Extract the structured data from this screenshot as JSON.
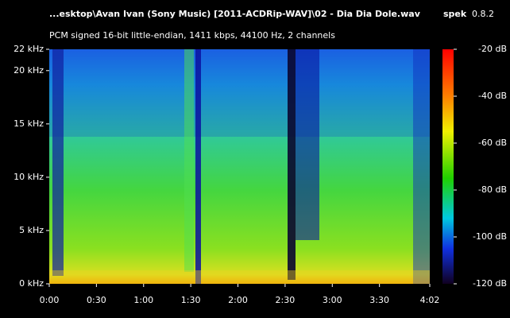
{
  "chart_data": {
    "type": "spectrogram",
    "title": "...esktop\\Avan Ivan (Sony Music) [2011-ACDRip-WAV]\\02 - Dia Dia Dole.wav",
    "app_name": "spek",
    "app_version": "0.8.2",
    "subtitle": "PCM signed 16-bit little-endian, 1411 kbps, 44100 Hz, 2 channels",
    "xlim": [
      0,
      242
    ],
    "xticks": [
      {
        "value": 0,
        "label": "0:00"
      },
      {
        "value": 30,
        "label": "0:30"
      },
      {
        "value": 60,
        "label": "1:00"
      },
      {
        "value": 90,
        "label": "1:30"
      },
      {
        "value": 120,
        "label": "2:00"
      },
      {
        "value": 150,
        "label": "2:30"
      },
      {
        "value": 180,
        "label": "3:00"
      },
      {
        "value": 210,
        "label": "3:30"
      },
      {
        "value": 242,
        "label": "4:02"
      }
    ],
    "ylim": [
      0,
      22
    ],
    "yticks": [
      {
        "value": 0,
        "label": "0 kHz"
      },
      {
        "value": 5,
        "label": "5 kHz"
      },
      {
        "value": 10,
        "label": "10 kHz"
      },
      {
        "value": 15,
        "label": "15 kHz"
      },
      {
        "value": 20,
        "label": "20 kHz"
      },
      {
        "value": 22,
        "label": "22 kHz"
      }
    ],
    "colorbar_lim": [
      -120,
      -20
    ],
    "colorbar_ticks": [
      {
        "value": -20,
        "label": "-20 dB"
      },
      {
        "value": -40,
        "label": "-40 dB"
      },
      {
        "value": -60,
        "label": "-60 dB"
      },
      {
        "value": -80,
        "label": "-80 dB"
      },
      {
        "value": -100,
        "label": "-100 dB"
      },
      {
        "value": -120,
        "label": "-120 dB"
      }
    ]
  }
}
